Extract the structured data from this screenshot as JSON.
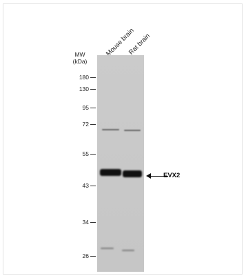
{
  "mw_header": {
    "line1": "MW",
    "line2": "(kDa)"
  },
  "lanes": [
    {
      "label": "Mouse brain"
    },
    {
      "label": "Rat brain"
    }
  ],
  "markers": [
    {
      "kda": "180"
    },
    {
      "kda": "130"
    },
    {
      "kda": "95"
    },
    {
      "kda": "72"
    },
    {
      "kda": "55"
    },
    {
      "kda": "43"
    },
    {
      "kda": "34"
    },
    {
      "kda": "26"
    }
  ],
  "target": {
    "label": "EVX2"
  }
}
